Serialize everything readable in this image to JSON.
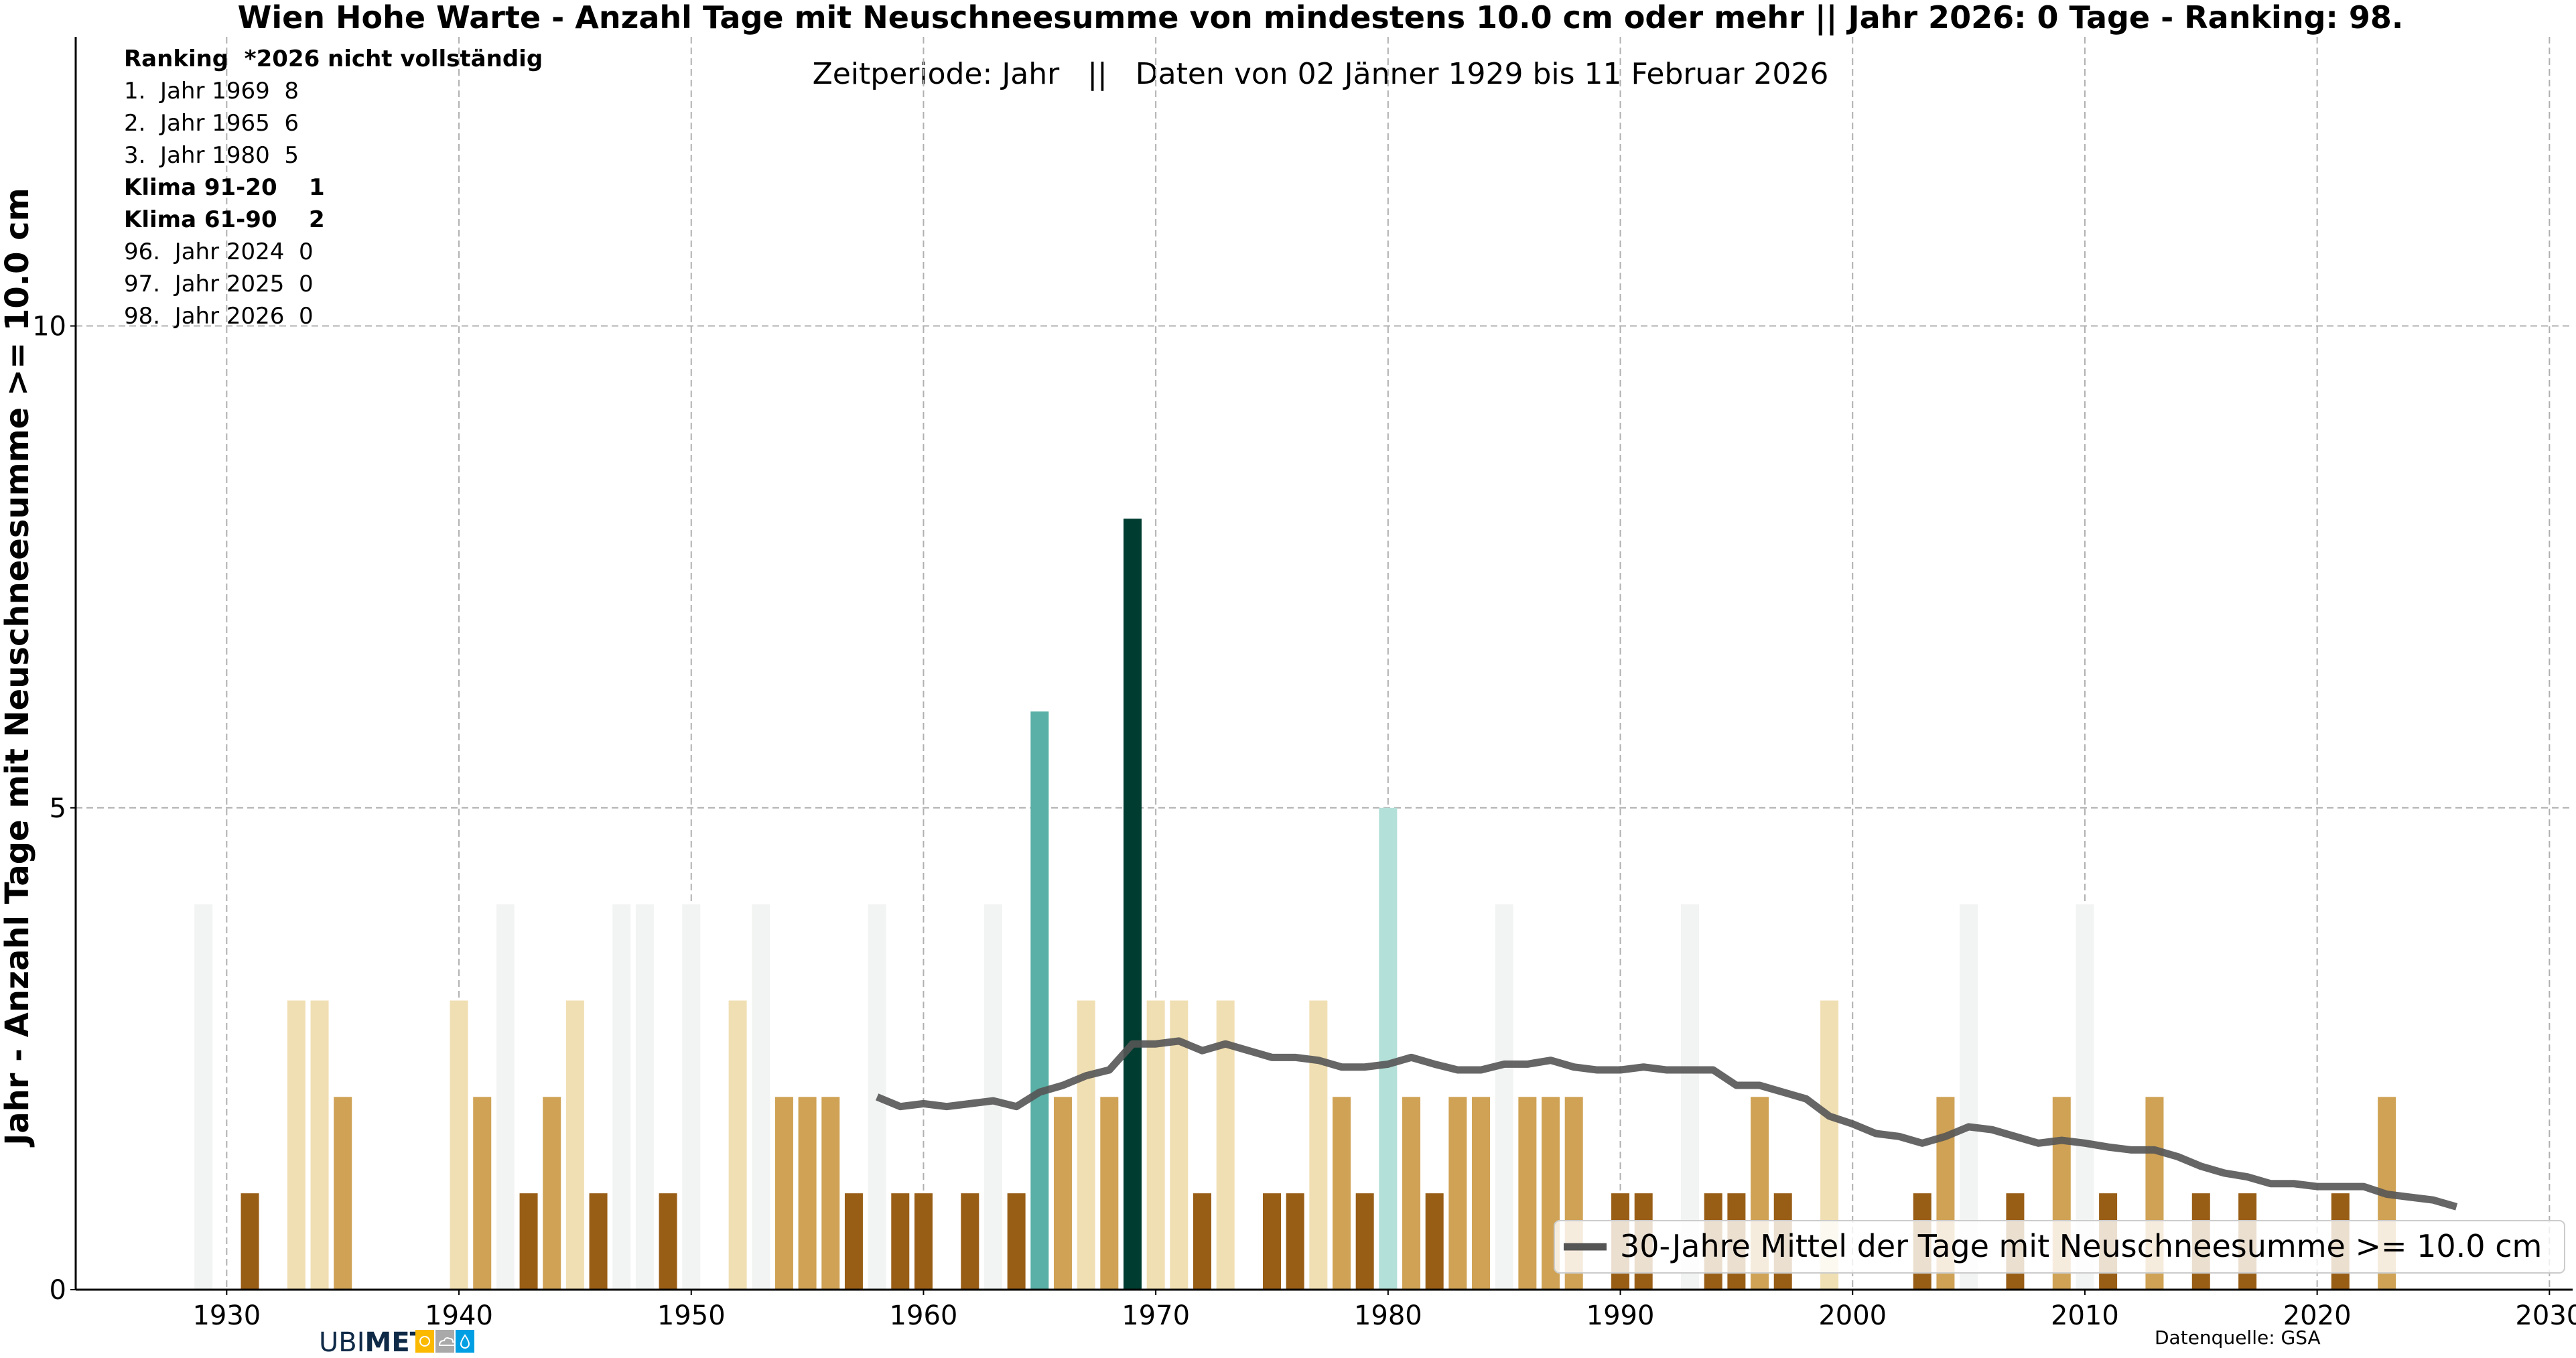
{
  "chart_data": {
    "type": "bar",
    "title": "Wien Hohe Warte - Anzahl Tage mit Neuschneesumme von mindestens 10.0 cm oder mehr || Jahr 2026: 0 Tage - Ranking: 98.",
    "subtitle": "Zeitperiode: Jahr   ||   Daten von 02 Jänner 1929 bis 11 Februar 2026",
    "xlabel": "",
    "ylabel": "Jahr - Anzahl Tage mit Neuschneesumme >= 10.0 cm",
    "xlim": [
      1923.5,
      2031
    ],
    "ylim": [
      0,
      13
    ],
    "xticks": [
      1930,
      1940,
      1950,
      1960,
      1970,
      1980,
      1990,
      2000,
      2010,
      2020,
      2030
    ],
    "yticks": [
      0,
      5,
      10
    ],
    "grid": true,
    "legend_position": "bottom-right",
    "value_colors": {
      "0": "#f2f4f3",
      "1": "#995e16",
      "2": "#cfa255",
      "3": "#f0dfb3",
      "5": "#b3e0d9",
      "6": "#5aafa6",
      "8": "#003c30"
    },
    "zero_marker_height": 4,
    "series": [
      {
        "name": "Anzahl Tage",
        "type": "bar",
        "x": [
          1929,
          1930,
          1931,
          1932,
          1933,
          1934,
          1935,
          1936,
          1937,
          1938,
          1939,
          1940,
          1941,
          1942,
          1943,
          1944,
          1945,
          1946,
          1947,
          1948,
          1949,
          1950,
          1951,
          1952,
          1953,
          1954,
          1955,
          1956,
          1957,
          1958,
          1959,
          1960,
          1961,
          1962,
          1963,
          1964,
          1965,
          1966,
          1967,
          1968,
          1969,
          1970,
          1971,
          1972,
          1973,
          1974,
          1975,
          1976,
          1977,
          1978,
          1979,
          1980,
          1981,
          1982,
          1983,
          1984,
          1985,
          1986,
          1987,
          1988,
          1989,
          1990,
          1991,
          1992,
          1993,
          1994,
          1995,
          1996,
          1997,
          1998,
          1999,
          2000,
          2001,
          2002,
          2003,
          2004,
          2005,
          2006,
          2007,
          2008,
          2009,
          2010,
          2011,
          2012,
          2013,
          2014,
          2015,
          2016,
          2017,
          2018,
          2019,
          2020,
          2021,
          2022,
          2023,
          2024,
          2025,
          2026
        ],
        "values": [
          0,
          0,
          1,
          0,
          3,
          3,
          2,
          0,
          0,
          0,
          0,
          3,
          2,
          0,
          1,
          2,
          3,
          1,
          0,
          0,
          1,
          0,
          0,
          3,
          0,
          2,
          2,
          2,
          1,
          0,
          1,
          1,
          0,
          1,
          0,
          1,
          6,
          2,
          3,
          2,
          8,
          3,
          3,
          1,
          3,
          0,
          1,
          1,
          3,
          2,
          1,
          5,
          2,
          1,
          2,
          2,
          0,
          2,
          2,
          2,
          0,
          1,
          1,
          0,
          0,
          1,
          1,
          2,
          1,
          0,
          3,
          0,
          0,
          0,
          1,
          2,
          0,
          0,
          1,
          0,
          2,
          0,
          1,
          0,
          2,
          0,
          1,
          0,
          1,
          0,
          0,
          0,
          1,
          0,
          2,
          0,
          0,
          0
        ],
        "zero_marker_years": [
          1929,
          1942,
          1947,
          1948,
          1950,
          1953,
          1958,
          1963,
          1985,
          1993,
          2005,
          2010
        ]
      },
      {
        "name": "30-Jahre Mittel der Tage mit Neuschneesumme >= 10.0 cm",
        "type": "line",
        "color": "#555555",
        "x": [
          1958,
          1959,
          1960,
          1961,
          1962,
          1963,
          1964,
          1965,
          1966,
          1967,
          1968,
          1969,
          1970,
          1971,
          1972,
          1973,
          1974,
          1975,
          1976,
          1977,
          1978,
          1979,
          1980,
          1981,
          1982,
          1983,
          1984,
          1985,
          1986,
          1987,
          1988,
          1989,
          1990,
          1991,
          1992,
          1993,
          1994,
          1995,
          1996,
          1997,
          1998,
          1999,
          2000,
          2001,
          2002,
          2003,
          2004,
          2005,
          2006,
          2007,
          2008,
          2009,
          2010,
          2011,
          2012,
          2013,
          2014,
          2015,
          2016,
          2017,
          2018,
          2019,
          2020,
          2021,
          2022,
          2023,
          2024,
          2025,
          2026
        ],
        "values": [
          2.0,
          1.9,
          1.93,
          1.9,
          1.93,
          1.96,
          1.9,
          2.05,
          2.12,
          2.22,
          2.28,
          2.55,
          2.55,
          2.58,
          2.48,
          2.55,
          2.48,
          2.41,
          2.41,
          2.38,
          2.31,
          2.31,
          2.34,
          2.41,
          2.34,
          2.28,
          2.28,
          2.34,
          2.34,
          2.38,
          2.31,
          2.28,
          2.28,
          2.31,
          2.28,
          2.28,
          2.28,
          2.12,
          2.12,
          2.05,
          1.98,
          1.8,
          1.72,
          1.62,
          1.59,
          1.52,
          1.59,
          1.69,
          1.66,
          1.59,
          1.52,
          1.55,
          1.52,
          1.48,
          1.45,
          1.45,
          1.38,
          1.28,
          1.21,
          1.17,
          1.1,
          1.1,
          1.07,
          1.07,
          1.07,
          0.99,
          0.96,
          0.93,
          0.86
        ]
      }
    ],
    "legend": [
      "30-Jahre Mittel der Tage mit Neuschneesumme >= 10.0 cm"
    ],
    "annotations": {
      "ranking_header": "Ranking  *2026 nicht vollständig",
      "ranking_lines": [
        {
          "text": "1.  Jahr 1969  8",
          "bold": false
        },
        {
          "text": "2.  Jahr 1965  6",
          "bold": false
        },
        {
          "text": "3.  Jahr 1980  5",
          "bold": false
        },
        {
          "text": "Klima 91-20    1",
          "bold": true
        },
        {
          "text": "Klima 61-90    2",
          "bold": true
        },
        {
          "text": "96.  Jahr 2024  0",
          "bold": false
        },
        {
          "text": "97.  Jahr 2025  0",
          "bold": false
        },
        {
          "text": "98.  Jahr 2026  0",
          "bold": false
        }
      ],
      "source": "Datenquelle: GSA"
    }
  },
  "logo": {
    "text_light": "UBI",
    "text_bold": "MET",
    "colors": [
      "#fbb900",
      "#a9a9a9",
      "#009fe3"
    ],
    "text_color": "#0f2a47"
  },
  "mean_line_color": "#555555",
  "grid_color": "#b0b0b0"
}
